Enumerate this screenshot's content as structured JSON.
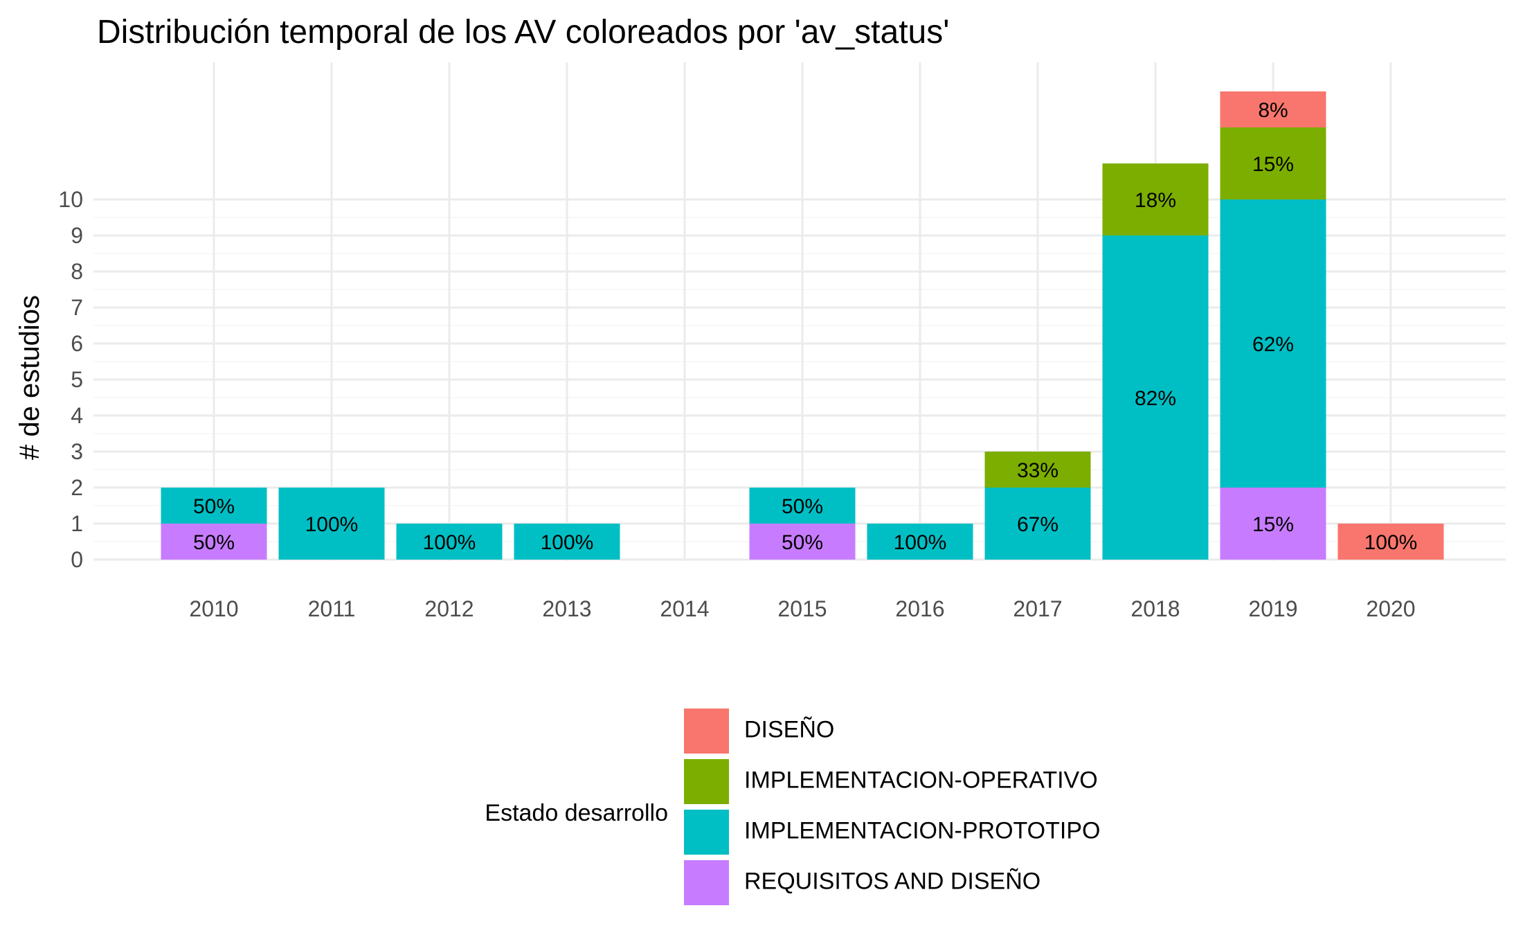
{
  "chart_data": {
    "type": "bar",
    "stacked": true,
    "title": "Distribución temporal de los AV coloreados por 'av_status'",
    "xlabel": "",
    "ylabel": "# de estudios",
    "categories": [
      "2010",
      "2011",
      "2012",
      "2013",
      "2014",
      "2015",
      "2016",
      "2017",
      "2018",
      "2019",
      "2020"
    ],
    "yticks": [
      0,
      1,
      2,
      3,
      4,
      5,
      6,
      7,
      8,
      9,
      10
    ],
    "ylim": [
      0,
      13
    ],
    "grid": true,
    "legend_position": "bottom",
    "legend_title": "Estado desarrollo",
    "series": [
      {
        "name": "DISEÑO",
        "color": "#F8766D",
        "values": [
          0,
          0,
          0,
          0,
          0,
          0,
          0,
          0,
          0,
          1,
          1
        ],
        "labels": [
          "",
          "",
          "",
          "",
          "",
          "",
          "",
          "",
          "",
          "8%",
          "100%"
        ]
      },
      {
        "name": "IMPLEMENTACION-OPERATIVO",
        "color": "#7CAE00",
        "values": [
          0,
          0,
          0,
          0,
          0,
          0,
          0,
          1,
          2,
          2,
          0
        ],
        "labels": [
          "",
          "",
          "",
          "",
          "",
          "",
          "",
          "33%",
          "18%",
          "15%",
          ""
        ]
      },
      {
        "name": "IMPLEMENTACION-PROTOTIPO",
        "color": "#00BFC4",
        "values": [
          1,
          2,
          1,
          1,
          0,
          1,
          1,
          2,
          9,
          8,
          0
        ],
        "labels": [
          "50%",
          "100%",
          "100%",
          "100%",
          "",
          "50%",
          "100%",
          "67%",
          "82%",
          "62%",
          ""
        ]
      },
      {
        "name": "REQUISITOS AND DISEÑO",
        "color": "#C77CFF",
        "values": [
          1,
          0,
          0,
          0,
          0,
          1,
          0,
          0,
          0,
          2,
          0
        ],
        "labels": [
          "50%",
          "",
          "",
          "",
          "",
          "50%",
          "",
          "",
          "",
          "15%",
          ""
        ]
      }
    ]
  }
}
